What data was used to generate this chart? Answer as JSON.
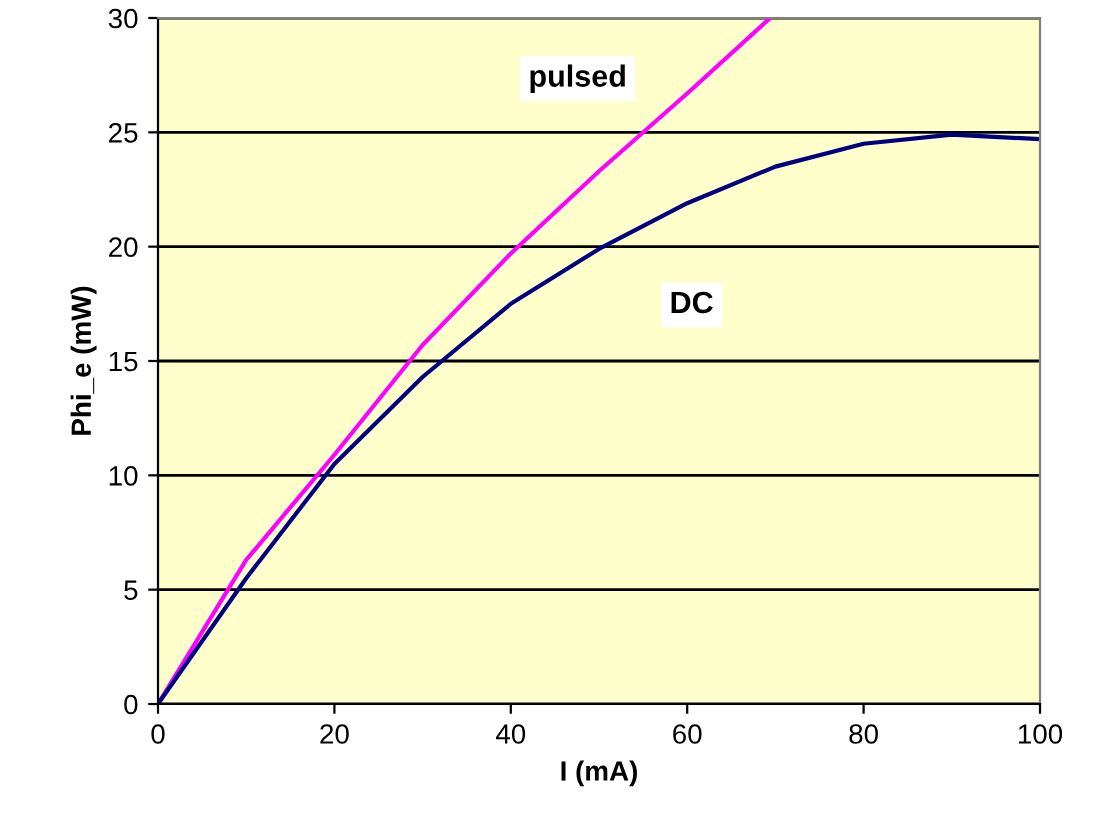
{
  "chart_data": {
    "type": "line",
    "xlabel": "I (mA)",
    "ylabel": "Phi_e (mW)",
    "xlim": [
      0,
      100
    ],
    "xticks": [
      0,
      20,
      40,
      60,
      80,
      100
    ],
    "ylim": [
      0,
      30
    ],
    "yticks": [
      0,
      5,
      10,
      15,
      20,
      25,
      30
    ],
    "grid": "y",
    "legend": false,
    "marker": "none",
    "line_style": "solid",
    "series": [
      {
        "name": "pulsed",
        "color": "#ff00ff",
        "x": [
          0,
          10,
          20,
          30,
          40,
          50,
          60,
          69.4
        ],
        "values": [
          0,
          6.3,
          10.9,
          15.7,
          19.7,
          23.3,
          26.7,
          30
        ]
      },
      {
        "name": "DC",
        "color": "#000080",
        "x": [
          0,
          10,
          20,
          30,
          40,
          50,
          60,
          70,
          80,
          90,
          100
        ],
        "values": [
          0,
          5.5,
          10.5,
          14.3,
          17.5,
          19.9,
          21.9,
          23.5,
          24.5,
          24.9,
          24.7
        ]
      }
    ]
  }
}
